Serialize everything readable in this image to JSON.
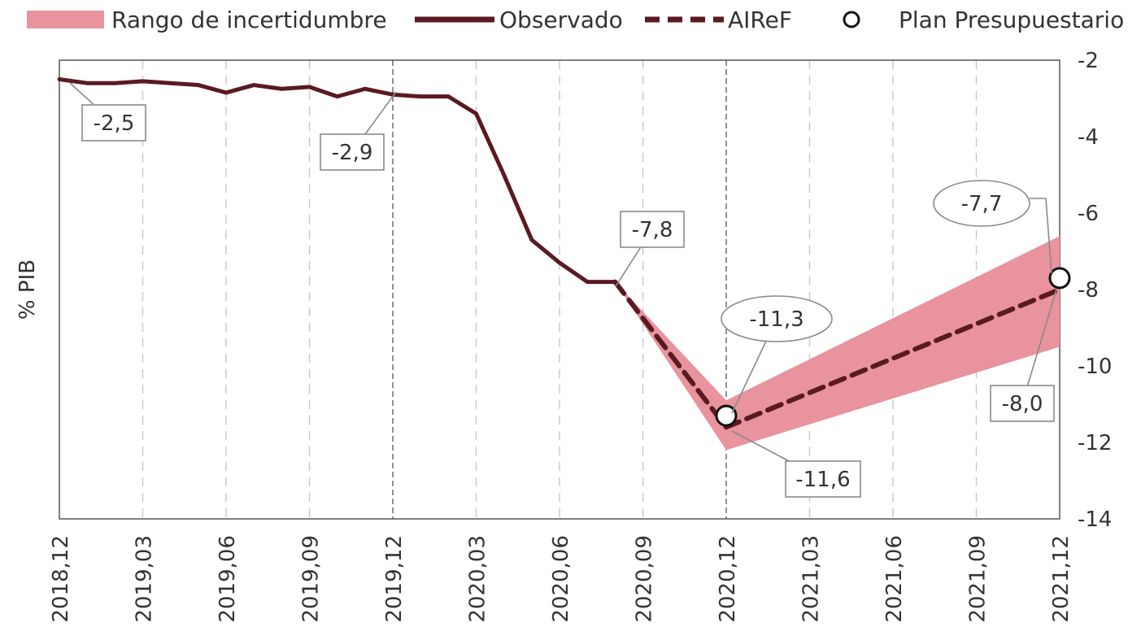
{
  "chart_data": {
    "type": "line",
    "ylabel": "% PIB",
    "xlabel": "",
    "ylim": [
      -14,
      -2
    ],
    "yticks": [
      -2,
      -4,
      -6,
      -8,
      -10,
      -12,
      -14
    ],
    "x_ticks": [
      "2018,12",
      "2019,03",
      "2019,06",
      "2019,09",
      "2019,12",
      "2020,03",
      "2020,06",
      "2020,09",
      "2020,12",
      "2021,03",
      "2021,06",
      "2021,09",
      "2021,12"
    ],
    "legend_position": "top",
    "grid": "vertical dashed",
    "legend": [
      {
        "key": "rango",
        "label": "Rango de incertidumbre"
      },
      {
        "key": "observado",
        "label": "Observado"
      },
      {
        "key": "airef",
        "label": "AIReF"
      },
      {
        "key": "plan",
        "label": "Plan Presupuestario"
      }
    ],
    "series": [
      {
        "name": "Observado",
        "style": "solid",
        "x": [
          0,
          1,
          2,
          3,
          4,
          5,
          6,
          7,
          8,
          9,
          10,
          11,
          12,
          13,
          14,
          15,
          16,
          17,
          18,
          19,
          20
        ],
        "y": [
          -2.5,
          -2.6,
          -2.6,
          -2.55,
          -2.6,
          -2.65,
          -2.85,
          -2.65,
          -2.75,
          -2.7,
          -2.95,
          -2.75,
          -2.9,
          -2.95,
          -2.95,
          -3.4,
          -5.0,
          -6.7,
          -7.3,
          -7.8,
          -7.8
        ]
      },
      {
        "name": "AIReF",
        "style": "dashed",
        "x": [
          20,
          24,
          36
        ],
        "y": [
          -7.8,
          -11.6,
          -8.0
        ]
      }
    ],
    "uncertainty_band": {
      "name": "Rango de incertidumbre",
      "x": [
        20,
        24,
        36
      ],
      "upper": [
        -7.8,
        -10.9,
        -6.6
      ],
      "lower": [
        -7.8,
        -12.2,
        -9.5
      ]
    },
    "plan_points": [
      {
        "x": 24,
        "y": -11.3
      },
      {
        "x": 36,
        "y": -7.7
      }
    ],
    "callouts": [
      {
        "label": "-2,5",
        "x": 0,
        "y": -2.5,
        "shape": "rect"
      },
      {
        "label": "-2,9",
        "x": 12,
        "y": -2.9,
        "shape": "rect"
      },
      {
        "label": "-7,8",
        "x": 20,
        "y": -7.8,
        "shape": "rect"
      },
      {
        "label": "-11,3",
        "x": 24,
        "y": -11.3,
        "shape": "ellipse"
      },
      {
        "label": "-11,6",
        "x": 24,
        "y": -11.6,
        "shape": "rect"
      },
      {
        "label": "-7,7",
        "x": 36,
        "y": -7.7,
        "shape": "ellipse"
      },
      {
        "label": "-8,0",
        "x": 36,
        "y": -8.0,
        "shape": "rect"
      }
    ],
    "colors": {
      "line": "#5a1a22",
      "band": "#e8939d",
      "grid": "#c8c8c8",
      "axis": "#555555",
      "callout_border": "#8a8a8a"
    }
  }
}
